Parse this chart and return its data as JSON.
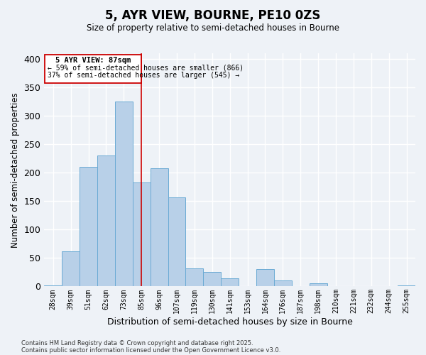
{
  "title": "5, AYR VIEW, BOURNE, PE10 0ZS",
  "subtitle": "Size of property relative to semi-detached houses in Bourne",
  "xlabel": "Distribution of semi-detached houses by size in Bourne",
  "ylabel": "Number of semi-detached properties",
  "categories": [
    "28sqm",
    "39sqm",
    "51sqm",
    "62sqm",
    "73sqm",
    "85sqm",
    "96sqm",
    "107sqm",
    "119sqm",
    "130sqm",
    "141sqm",
    "153sqm",
    "164sqm",
    "176sqm",
    "187sqm",
    "198sqm",
    "210sqm",
    "221sqm",
    "232sqm",
    "244sqm",
    "255sqm"
  ],
  "values": [
    2,
    62,
    210,
    230,
    325,
    183,
    208,
    157,
    32,
    25,
    14,
    0,
    31,
    10,
    0,
    5,
    0,
    0,
    0,
    0,
    2
  ],
  "bar_color": "#b8d0e8",
  "bar_edge_color": "#6aaad4",
  "vline_x_idx": 5,
  "vline_color": "#cc0000",
  "annotation_title": "5 AYR VIEW: 87sqm",
  "annotation_line2": "← 59% of semi-detached houses are smaller (866)",
  "annotation_line3": "37% of semi-detached houses are larger (545) →",
  "annotation_box_color": "#ffffff",
  "annotation_box_edge": "#cc0000",
  "ylim": [
    0,
    410
  ],
  "footnote1": "Contains HM Land Registry data © Crown copyright and database right 2025.",
  "footnote2": "Contains public sector information licensed under the Open Government Licence v3.0.",
  "background_color": "#eef2f7",
  "grid_color": "#ffffff"
}
